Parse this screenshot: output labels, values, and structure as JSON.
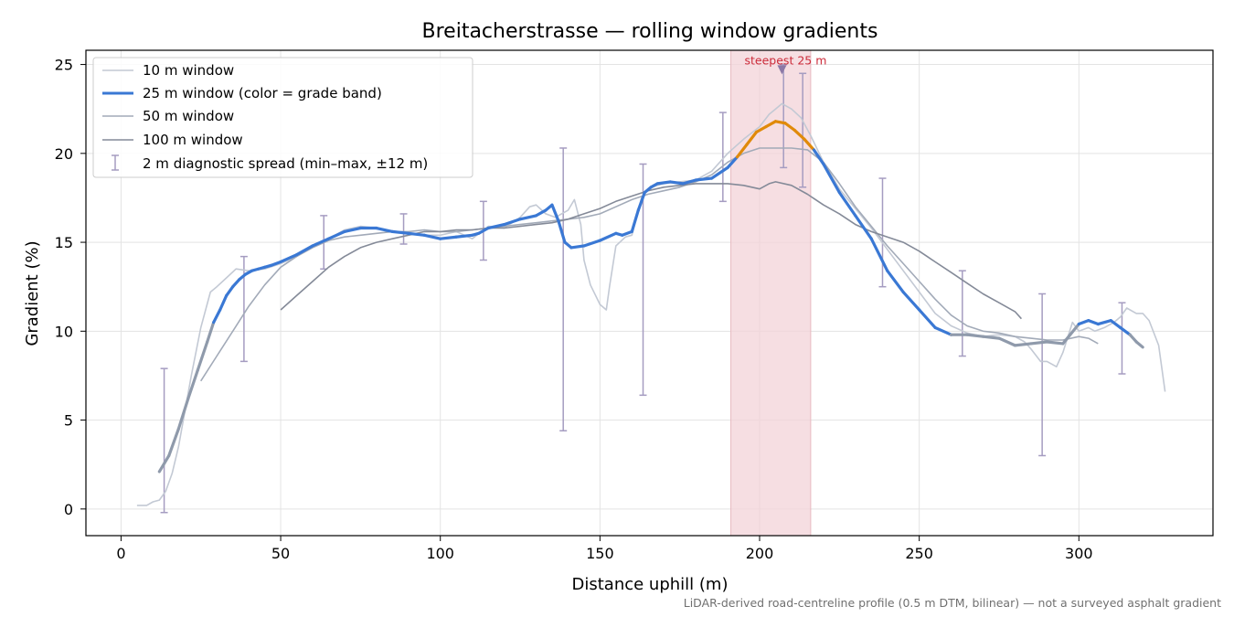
{
  "chart_data": {
    "type": "line",
    "title": "Breitacherstrasse — rolling window gradients",
    "xlabel": "Distance uphill (m)",
    "ylabel": "Gradient (%)",
    "xlim": [
      -11,
      342
    ],
    "ylim": [
      -1.5,
      25.8
    ],
    "xticks": [
      0,
      50,
      100,
      150,
      200,
      250,
      300
    ],
    "yticks": [
      0,
      5,
      10,
      15,
      20,
      25
    ],
    "grid": true,
    "legend_position": "top-left",
    "footnote": "LiDAR-derived road-centreline profile (0.5 m DTM, bilinear) — not a surveyed asphalt gradient",
    "highlight": {
      "x_start": 191,
      "x_end": 216,
      "label": "steepest 25 m",
      "marker": [
        207,
        24.7
      ]
    },
    "legend": [
      "10 m window",
      "25 m window (color = grade band)",
      "50 m window",
      "100 m window",
      "2 m diagnostic spread (min–max, ±12 m)"
    ],
    "colors": {
      "w10": "#c3c9d4",
      "w25": "#3a78d4",
      "w25_steep": "#e08a0a",
      "w25_grey": "#8f9aab",
      "w50": "#a2aab8",
      "w100": "#848a98",
      "errorbar": "#a59cc1",
      "highlight": "#f3d3d8",
      "annotation": "#cc2b3a",
      "marker": "#8c78a6"
    },
    "series": [
      {
        "name": "10 m window",
        "x": [
          5,
          8,
          10,
          12,
          14,
          16,
          18,
          20,
          22,
          25,
          28,
          30,
          33,
          36,
          40,
          45,
          50,
          55,
          60,
          65,
          70,
          75,
          80,
          85,
          90,
          95,
          100,
          105,
          110,
          115,
          120,
          125,
          128,
          130,
          133,
          136,
          138,
          140,
          142,
          144,
          145,
          147,
          150,
          152,
          153,
          155,
          158,
          160,
          163,
          165,
          168,
          170,
          175,
          180,
          185,
          190,
          195,
          200,
          203,
          205,
          207,
          210,
          213,
          216,
          220,
          225,
          230,
          235,
          240,
          245,
          250,
          255,
          260,
          265,
          270,
          275,
          280,
          283,
          285,
          288,
          290,
          293,
          295,
          298,
          300,
          303,
          305,
          308,
          311,
          313,
          315,
          318,
          320,
          322,
          325,
          327
        ],
        "y": [
          0.2,
          0.2,
          0.4,
          0.5,
          1.0,
          2.0,
          3.5,
          5.5,
          7.5,
          10.2,
          12.2,
          12.5,
          13.0,
          13.5,
          13.4,
          13.5,
          13.8,
          14.2,
          14.8,
          15.2,
          15.7,
          15.9,
          15.8,
          15.6,
          15.5,
          15.4,
          15.4,
          15.6,
          15.2,
          15.9,
          15.8,
          16.4,
          17.0,
          17.1,
          16.6,
          16.4,
          16.6,
          16.8,
          17.4,
          16.0,
          14.0,
          12.6,
          11.5,
          11.2,
          12.5,
          14.8,
          15.3,
          15.4,
          17.5,
          18.0,
          18.2,
          18.3,
          18.4,
          18.5,
          19.0,
          20.0,
          20.8,
          21.5,
          22.2,
          22.5,
          22.8,
          22.5,
          22.0,
          21.0,
          19.5,
          18.0,
          16.9,
          15.8,
          14.6,
          13.4,
          12.2,
          11.0,
          10.3,
          9.9,
          9.7,
          9.8,
          9.7,
          9.4,
          9.0,
          8.3,
          8.3,
          8.0,
          8.8,
          10.5,
          10.0,
          10.2,
          10.0,
          10.2,
          10.5,
          10.8,
          11.3,
          11.0,
          11.0,
          10.6,
          9.2,
          6.6
        ]
      },
      {
        "name": "25 m window",
        "x": [
          12,
          15,
          18,
          21,
          24,
          27,
          29,
          31,
          33,
          35,
          37,
          39,
          41,
          43,
          45,
          47,
          50,
          55,
          60,
          65,
          70,
          75,
          80,
          85,
          90,
          95,
          100,
          105,
          110,
          112,
          115,
          120,
          125,
          130,
          133,
          135,
          137,
          139,
          141,
          145,
          150,
          155,
          157,
          160,
          162,
          164,
          166,
          168,
          172,
          176,
          180,
          185,
          190,
          193,
          196,
          199,
          202,
          205,
          208,
          211,
          214,
          217,
          220,
          225,
          230,
          235,
          240,
          245,
          250,
          255,
          260,
          265,
          270,
          275,
          280,
          285,
          290,
          295,
          300,
          303,
          306,
          310,
          313,
          316,
          318,
          320
        ],
        "y": [
          2.1,
          3.0,
          4.5,
          6.2,
          7.8,
          9.4,
          10.5,
          11.2,
          12.0,
          12.5,
          12.9,
          13.2,
          13.4,
          13.5,
          13.6,
          13.7,
          13.9,
          14.3,
          14.8,
          15.2,
          15.6,
          15.8,
          15.8,
          15.6,
          15.5,
          15.4,
          15.2,
          15.3,
          15.4,
          15.5,
          15.8,
          16.0,
          16.3,
          16.5,
          16.8,
          17.1,
          16.2,
          15.0,
          14.7,
          14.8,
          15.1,
          15.5,
          15.4,
          15.6,
          16.8,
          17.8,
          18.1,
          18.3,
          18.4,
          18.3,
          18.5,
          18.6,
          19.2,
          19.8,
          20.5,
          21.2,
          21.5,
          21.8,
          21.7,
          21.3,
          20.8,
          20.2,
          19.4,
          17.8,
          16.5,
          15.2,
          13.4,
          12.2,
          11.2,
          10.2,
          9.8,
          9.8,
          9.7,
          9.6,
          9.2,
          9.3,
          9.4,
          9.3,
          10.4,
          10.6,
          10.4,
          10.6,
          10.2,
          9.8,
          9.4,
          9.1
        ]
      },
      {
        "name": "50 m window",
        "x": [
          25,
          30,
          35,
          40,
          45,
          50,
          55,
          60,
          65,
          70,
          75,
          80,
          85,
          90,
          95,
          100,
          105,
          110,
          115,
          120,
          125,
          130,
          135,
          140,
          145,
          150,
          155,
          160,
          165,
          170,
          175,
          180,
          185,
          190,
          195,
          200,
          205,
          210,
          215,
          220,
          225,
          230,
          235,
          240,
          245,
          250,
          255,
          260,
          265,
          270,
          275,
          280,
          285,
          290,
          295,
          300,
          303,
          306
        ],
        "y": [
          7.2,
          8.6,
          10.0,
          11.4,
          12.6,
          13.6,
          14.2,
          14.7,
          15.1,
          15.3,
          15.4,
          15.5,
          15.6,
          15.6,
          15.7,
          15.6,
          15.6,
          15.7,
          15.8,
          15.9,
          16.0,
          16.1,
          16.2,
          16.3,
          16.4,
          16.6,
          17.0,
          17.4,
          17.7,
          17.9,
          18.1,
          18.4,
          18.8,
          19.5,
          20.0,
          20.3,
          20.3,
          20.3,
          20.2,
          19.5,
          18.3,
          17.0,
          15.9,
          14.8,
          13.8,
          12.8,
          11.8,
          10.9,
          10.3,
          10.0,
          9.9,
          9.7,
          9.6,
          9.5,
          9.5,
          9.7,
          9.6,
          9.3
        ]
      },
      {
        "name": "100 m window",
        "x": [
          50,
          55,
          60,
          65,
          70,
          75,
          80,
          85,
          90,
          95,
          100,
          105,
          110,
          115,
          120,
          125,
          130,
          135,
          140,
          145,
          150,
          155,
          160,
          165,
          170,
          175,
          180,
          185,
          190,
          195,
          200,
          203,
          205,
          210,
          215,
          220,
          225,
          230,
          235,
          240,
          245,
          250,
          255,
          260,
          265,
          270,
          275,
          280,
          282
        ],
        "y": [
          11.2,
          12.0,
          12.8,
          13.6,
          14.2,
          14.7,
          15.0,
          15.2,
          15.4,
          15.6,
          15.6,
          15.7,
          15.7,
          15.8,
          15.8,
          15.9,
          16.0,
          16.1,
          16.3,
          16.6,
          16.9,
          17.3,
          17.6,
          17.9,
          18.1,
          18.2,
          18.3,
          18.3,
          18.3,
          18.2,
          18.0,
          18.3,
          18.4,
          18.2,
          17.7,
          17.1,
          16.6,
          16.0,
          15.6,
          15.3,
          15.0,
          14.5,
          13.9,
          13.3,
          12.7,
          12.1,
          11.6,
          11.1,
          10.7
        ]
      }
    ],
    "errorbars": [
      {
        "x": 13.5,
        "low": -0.2,
        "high": 7.9
      },
      {
        "x": 38.5,
        "low": 8.3,
        "high": 14.2
      },
      {
        "x": 63.5,
        "low": 13.5,
        "high": 16.5
      },
      {
        "x": 88.5,
        "low": 14.9,
        "high": 16.6
      },
      {
        "x": 113.5,
        "low": 14.0,
        "high": 17.3
      },
      {
        "x": 138.5,
        "low": 4.4,
        "high": 20.3
      },
      {
        "x": 163.5,
        "low": 6.4,
        "high": 19.4
      },
      {
        "x": 188.5,
        "low": 17.3,
        "high": 22.3
      },
      {
        "x": 207.5,
        "low": 19.2,
        "high": 25.0
      },
      {
        "x": 213.5,
        "low": 18.1,
        "high": 24.5
      },
      {
        "x": 238.5,
        "low": 12.5,
        "high": 18.6
      },
      {
        "x": 263.5,
        "low": 8.6,
        "high": 13.4
      },
      {
        "x": 288.5,
        "low": 3.0,
        "high": 12.1
      },
      {
        "x": 313.5,
        "low": 7.6,
        "high": 11.6
      }
    ]
  }
}
